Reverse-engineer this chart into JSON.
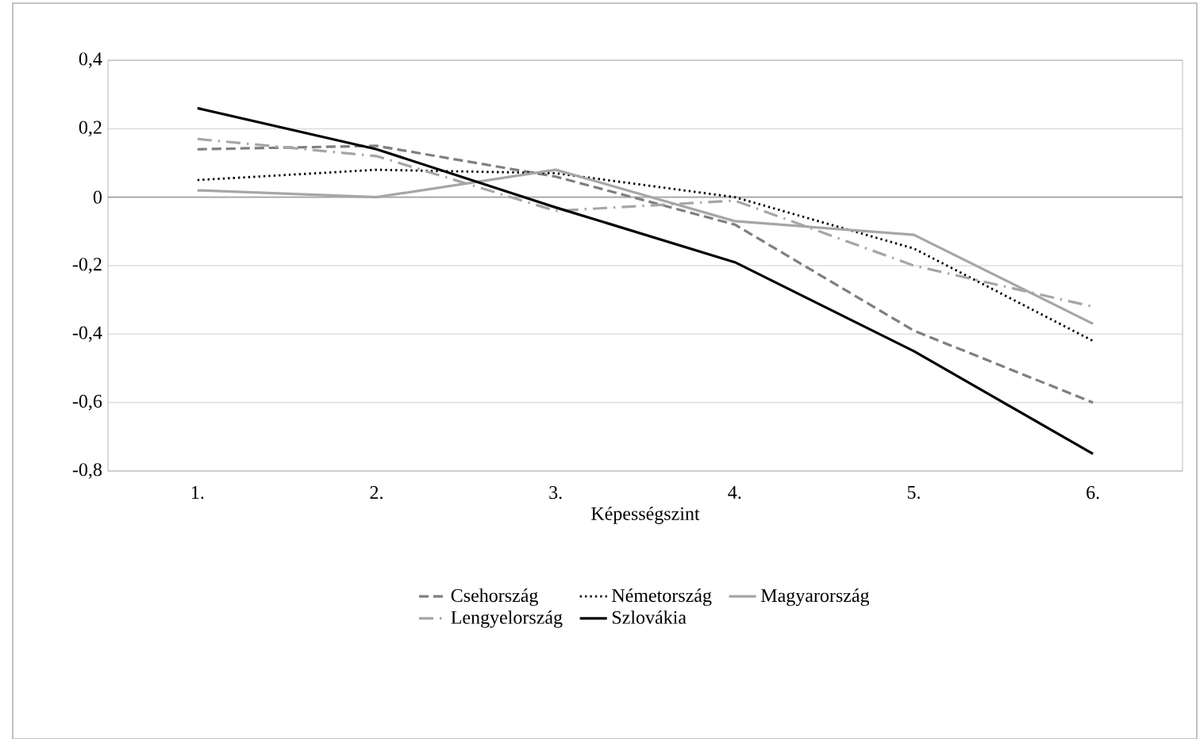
{
  "chart_data": {
    "type": "line",
    "xlabel": "Képességszint",
    "categories": [
      "1.",
      "2.",
      "3.",
      "4.",
      "5.",
      "6."
    ],
    "series": [
      {
        "name": "Csehország",
        "color": "#7f7f7f",
        "line_style": "dashed",
        "values": [
          0.14,
          0.15,
          0.06,
          -0.08,
          -0.39,
          -0.6
        ]
      },
      {
        "name": "Németország",
        "color": "#000000",
        "line_style": "dotted",
        "values": [
          0.05,
          0.08,
          0.07,
          0.0,
          -0.15,
          -0.42
        ]
      },
      {
        "name": "Magyarország",
        "color": "#a6a6a6",
        "line_style": "solid",
        "values": [
          0.02,
          0.0,
          0.08,
          -0.07,
          -0.11,
          -0.37
        ]
      },
      {
        "name": "Lengyelország",
        "color": "#a6a6a6",
        "line_style": "dashdot",
        "values": [
          0.17,
          0.12,
          -0.04,
          -0.01,
          -0.2,
          -0.32
        ]
      },
      {
        "name": "Szlovákia",
        "color": "#000000",
        "line_style": "solid",
        "values": [
          0.26,
          0.14,
          -0.03,
          -0.19,
          -0.45,
          -0.75
        ]
      }
    ],
    "ylim": [
      -0.8,
      0.4
    ],
    "yticks": [
      {
        "value": -0.8,
        "label": "-0,8"
      },
      {
        "value": -0.6,
        "label": "-0,6"
      },
      {
        "value": -0.4,
        "label": "-0,4"
      },
      {
        "value": -0.2,
        "label": "-0,2"
      },
      {
        "value": 0,
        "label": "0"
      },
      {
        "value": 0.2,
        "label": "0,2"
      },
      {
        "value": 0.4,
        "label": "0,4"
      }
    ],
    "grid": "y",
    "legend": "bottom",
    "marker": "none"
  }
}
